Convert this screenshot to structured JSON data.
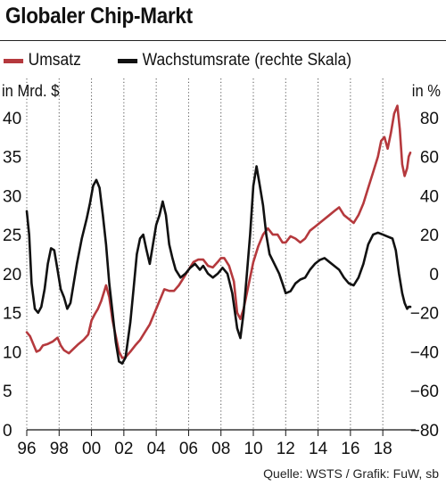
{
  "chart_data": {
    "type": "line",
    "title": "Globaler Chip-Markt",
    "left_unit": "in Mrd. $",
    "right_unit": "in %",
    "source": "Quelle: WSTS / Grafik: FuW, sb",
    "x_range": [
      1996,
      2019.7
    ],
    "x_ticks": [
      {
        "value": 1996,
        "label": "96"
      },
      {
        "value": 1998,
        "label": "98"
      },
      {
        "value": 2000,
        "label": "00"
      },
      {
        "value": 2002,
        "label": "02"
      },
      {
        "value": 2004,
        "label": "04"
      },
      {
        "value": 2006,
        "label": "06"
      },
      {
        "value": 2008,
        "label": "08"
      },
      {
        "value": 2010,
        "label": "10"
      },
      {
        "value": 2012,
        "label": "12"
      },
      {
        "value": 2014,
        "label": "14"
      },
      {
        "value": 2016,
        "label": "16"
      },
      {
        "value": 2018,
        "label": "18"
      }
    ],
    "y_left": {
      "range": [
        0,
        45
      ],
      "ticks": [
        {
          "value": 0,
          "label": "0"
        },
        {
          "value": 5,
          "label": "5"
        },
        {
          "value": 10,
          "label": "10"
        },
        {
          "value": 15,
          "label": "15"
        },
        {
          "value": 20,
          "label": "20"
        },
        {
          "value": 25,
          "label": "25"
        },
        {
          "value": 30,
          "label": "30"
        },
        {
          "value": 35,
          "label": "35"
        },
        {
          "value": 40,
          "label": "40"
        }
      ]
    },
    "y_right": {
      "range": [
        -80,
        100
      ],
      "ticks": [
        {
          "value": -80,
          "label": "−80"
        },
        {
          "value": -60,
          "label": "−60"
        },
        {
          "value": -40,
          "label": "−40"
        },
        {
          "value": -20,
          "label": "−20"
        },
        {
          "value": 0,
          "label": "0"
        },
        {
          "value": 20,
          "label": "20"
        },
        {
          "value": 40,
          "label": "40"
        },
        {
          "value": 60,
          "label": "60"
        },
        {
          "value": 80,
          "label": "80"
        }
      ]
    },
    "grid": "vertical dotted at x ticks",
    "series": [
      {
        "name": "Umsatz",
        "axis": "left",
        "color": "#b5393d",
        "points": [
          [
            1996.0,
            12.5
          ],
          [
            1996.2,
            12.0
          ],
          [
            1996.4,
            11.0
          ],
          [
            1996.6,
            10.0
          ],
          [
            1996.8,
            10.2
          ],
          [
            1997.0,
            10.8
          ],
          [
            1997.3,
            11.0
          ],
          [
            1997.6,
            11.3
          ],
          [
            1997.9,
            11.8
          ],
          [
            1998.1,
            10.8
          ],
          [
            1998.3,
            10.2
          ],
          [
            1998.6,
            9.8
          ],
          [
            1998.9,
            10.4
          ],
          [
            1999.2,
            11.0
          ],
          [
            1999.5,
            11.5
          ],
          [
            1999.8,
            12.2
          ],
          [
            2000.0,
            14.0
          ],
          [
            2000.2,
            14.8
          ],
          [
            2000.4,
            15.5
          ],
          [
            2000.6,
            16.5
          ],
          [
            2000.9,
            18.5
          ],
          [
            2001.1,
            17.0
          ],
          [
            2001.3,
            14.0
          ],
          [
            2001.5,
            12.0
          ],
          [
            2001.7,
            10.0
          ],
          [
            2001.9,
            9.2
          ],
          [
            2002.1,
            9.3
          ],
          [
            2002.4,
            10.0
          ],
          [
            2002.7,
            10.8
          ],
          [
            2003.0,
            11.5
          ],
          [
            2003.3,
            12.5
          ],
          [
            2003.6,
            13.5
          ],
          [
            2003.9,
            15.0
          ],
          [
            2004.2,
            16.5
          ],
          [
            2004.5,
            18.0
          ],
          [
            2004.8,
            17.8
          ],
          [
            2005.1,
            17.8
          ],
          [
            2005.4,
            18.5
          ],
          [
            2005.7,
            19.5
          ],
          [
            2006.0,
            20.5
          ],
          [
            2006.3,
            21.5
          ],
          [
            2006.6,
            21.8
          ],
          [
            2006.9,
            21.8
          ],
          [
            2007.2,
            21.0
          ],
          [
            2007.5,
            20.8
          ],
          [
            2007.8,
            21.5
          ],
          [
            2008.0,
            22.0
          ],
          [
            2008.2,
            22.0
          ],
          [
            2008.5,
            21.0
          ],
          [
            2008.8,
            19.0
          ],
          [
            2009.0,
            15.0
          ],
          [
            2009.2,
            14.2
          ],
          [
            2009.4,
            15.5
          ],
          [
            2009.7,
            18.5
          ],
          [
            2010.0,
            21.5
          ],
          [
            2010.3,
            23.5
          ],
          [
            2010.6,
            25.0
          ],
          [
            2010.9,
            25.8
          ],
          [
            2011.2,
            25.0
          ],
          [
            2011.5,
            25.0
          ],
          [
            2011.8,
            24.0
          ],
          [
            2012.0,
            24.0
          ],
          [
            2012.3,
            24.8
          ],
          [
            2012.6,
            24.5
          ],
          [
            2012.9,
            24.0
          ],
          [
            2013.2,
            24.5
          ],
          [
            2013.5,
            25.5
          ],
          [
            2013.8,
            26.0
          ],
          [
            2014.1,
            26.5
          ],
          [
            2014.4,
            27.0
          ],
          [
            2014.7,
            27.5
          ],
          [
            2015.0,
            28.0
          ],
          [
            2015.3,
            28.5
          ],
          [
            2015.6,
            27.5
          ],
          [
            2015.9,
            27.0
          ],
          [
            2016.2,
            26.5
          ],
          [
            2016.5,
            27.5
          ],
          [
            2016.8,
            29.0
          ],
          [
            2017.1,
            31.0
          ],
          [
            2017.4,
            33.0
          ],
          [
            2017.7,
            35.0
          ],
          [
            2017.9,
            37.0
          ],
          [
            2018.1,
            37.5
          ],
          [
            2018.3,
            36.0
          ],
          [
            2018.5,
            38.0
          ],
          [
            2018.7,
            40.5
          ],
          [
            2018.9,
            41.5
          ],
          [
            2019.05,
            38.5
          ],
          [
            2019.2,
            34.0
          ],
          [
            2019.35,
            32.5
          ],
          [
            2019.5,
            33.5
          ],
          [
            2019.6,
            35.0
          ],
          [
            2019.7,
            35.5
          ]
        ]
      },
      {
        "name": "Wachstumsrate (rechte Skala)",
        "axis": "right",
        "color": "#111111",
        "points": [
          [
            1996.0,
            32
          ],
          [
            1996.15,
            20
          ],
          [
            1996.3,
            -5
          ],
          [
            1996.5,
            -18
          ],
          [
            1996.7,
            -20
          ],
          [
            1996.9,
            -17
          ],
          [
            1997.1,
            -8
          ],
          [
            1997.3,
            5
          ],
          [
            1997.5,
            13
          ],
          [
            1997.7,
            12
          ],
          [
            1997.9,
            2
          ],
          [
            1998.1,
            -8
          ],
          [
            1998.3,
            -12
          ],
          [
            1998.5,
            -18
          ],
          [
            1998.7,
            -15
          ],
          [
            1998.9,
            -5
          ],
          [
            1999.1,
            5
          ],
          [
            1999.4,
            18
          ],
          [
            1999.7,
            28
          ],
          [
            1999.9,
            36
          ],
          [
            2000.1,
            45
          ],
          [
            2000.3,
            48
          ],
          [
            2000.5,
            44
          ],
          [
            2000.7,
            30
          ],
          [
            2000.9,
            15
          ],
          [
            2001.1,
            -5
          ],
          [
            2001.3,
            -20
          ],
          [
            2001.5,
            -35
          ],
          [
            2001.7,
            -45
          ],
          [
            2001.9,
            -46
          ],
          [
            2002.1,
            -43
          ],
          [
            2002.4,
            -25
          ],
          [
            2002.6,
            -8
          ],
          [
            2002.8,
            10
          ],
          [
            2003.0,
            18
          ],
          [
            2003.2,
            20
          ],
          [
            2003.4,
            12
          ],
          [
            2003.6,
            5
          ],
          [
            2003.8,
            15
          ],
          [
            2004.0,
            25
          ],
          [
            2004.2,
            30
          ],
          [
            2004.4,
            37
          ],
          [
            2004.6,
            30
          ],
          [
            2004.8,
            15
          ],
          [
            2005.0,
            8
          ],
          [
            2005.2,
            2
          ],
          [
            2005.5,
            -2
          ],
          [
            2005.8,
            0
          ],
          [
            2006.1,
            3
          ],
          [
            2006.4,
            5
          ],
          [
            2006.7,
            2
          ],
          [
            2006.9,
            4
          ],
          [
            2007.2,
            0
          ],
          [
            2007.5,
            -2
          ],
          [
            2007.8,
            0
          ],
          [
            2008.1,
            3
          ],
          [
            2008.4,
            0
          ],
          [
            2008.7,
            -10
          ],
          [
            2009.0,
            -28
          ],
          [
            2009.2,
            -33
          ],
          [
            2009.4,
            -20
          ],
          [
            2009.6,
            0
          ],
          [
            2009.8,
            20
          ],
          [
            2010.0,
            45
          ],
          [
            2010.2,
            55
          ],
          [
            2010.4,
            45
          ],
          [
            2010.6,
            35
          ],
          [
            2010.8,
            20
          ],
          [
            2011.0,
            10
          ],
          [
            2011.3,
            5
          ],
          [
            2011.6,
            0
          ],
          [
            2011.8,
            -5
          ],
          [
            2012.0,
            -10
          ],
          [
            2012.3,
            -9
          ],
          [
            2012.6,
            -5
          ],
          [
            2012.9,
            -3
          ],
          [
            2013.2,
            -2
          ],
          [
            2013.5,
            2
          ],
          [
            2013.8,
            5
          ],
          [
            2014.1,
            7
          ],
          [
            2014.4,
            8
          ],
          [
            2014.7,
            6
          ],
          [
            2015.0,
            4
          ],
          [
            2015.3,
            2
          ],
          [
            2015.6,
            -2
          ],
          [
            2015.9,
            -5
          ],
          [
            2016.2,
            -6
          ],
          [
            2016.5,
            -2
          ],
          [
            2016.8,
            5
          ],
          [
            2017.1,
            15
          ],
          [
            2017.4,
            20
          ],
          [
            2017.7,
            21
          ],
          [
            2018.0,
            20
          ],
          [
            2018.3,
            19
          ],
          [
            2018.6,
            18
          ],
          [
            2018.8,
            12
          ],
          [
            2019.0,
            0
          ],
          [
            2019.2,
            -10
          ],
          [
            2019.35,
            -15
          ],
          [
            2019.5,
            -18
          ],
          [
            2019.6,
            -17
          ],
          [
            2019.7,
            -17
          ]
        ]
      }
    ]
  }
}
